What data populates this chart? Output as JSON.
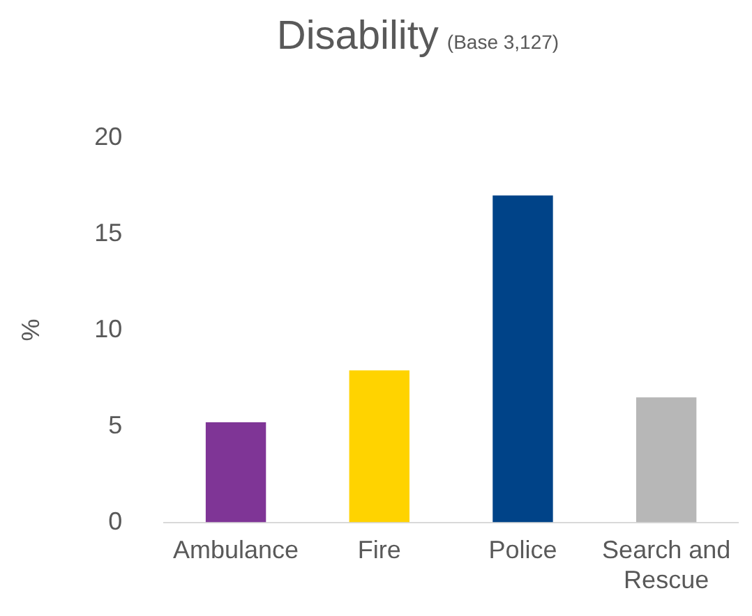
{
  "chart_data": {
    "type": "bar",
    "title": "Disability",
    "subtitle": "(Base 3,127)",
    "ylabel": "%",
    "categories": [
      "Ambulance",
      "Fire",
      "Police",
      "Search and Rescue"
    ],
    "values": [
      5.2,
      7.9,
      17.0,
      6.5
    ],
    "colors": [
      "#7f3596",
      "#ffd300",
      "#004388",
      "#b7b7b7"
    ],
    "ylim": [
      0,
      20
    ],
    "yticks": [
      0,
      5,
      10,
      15,
      20
    ],
    "grid": false,
    "legend": false
  }
}
